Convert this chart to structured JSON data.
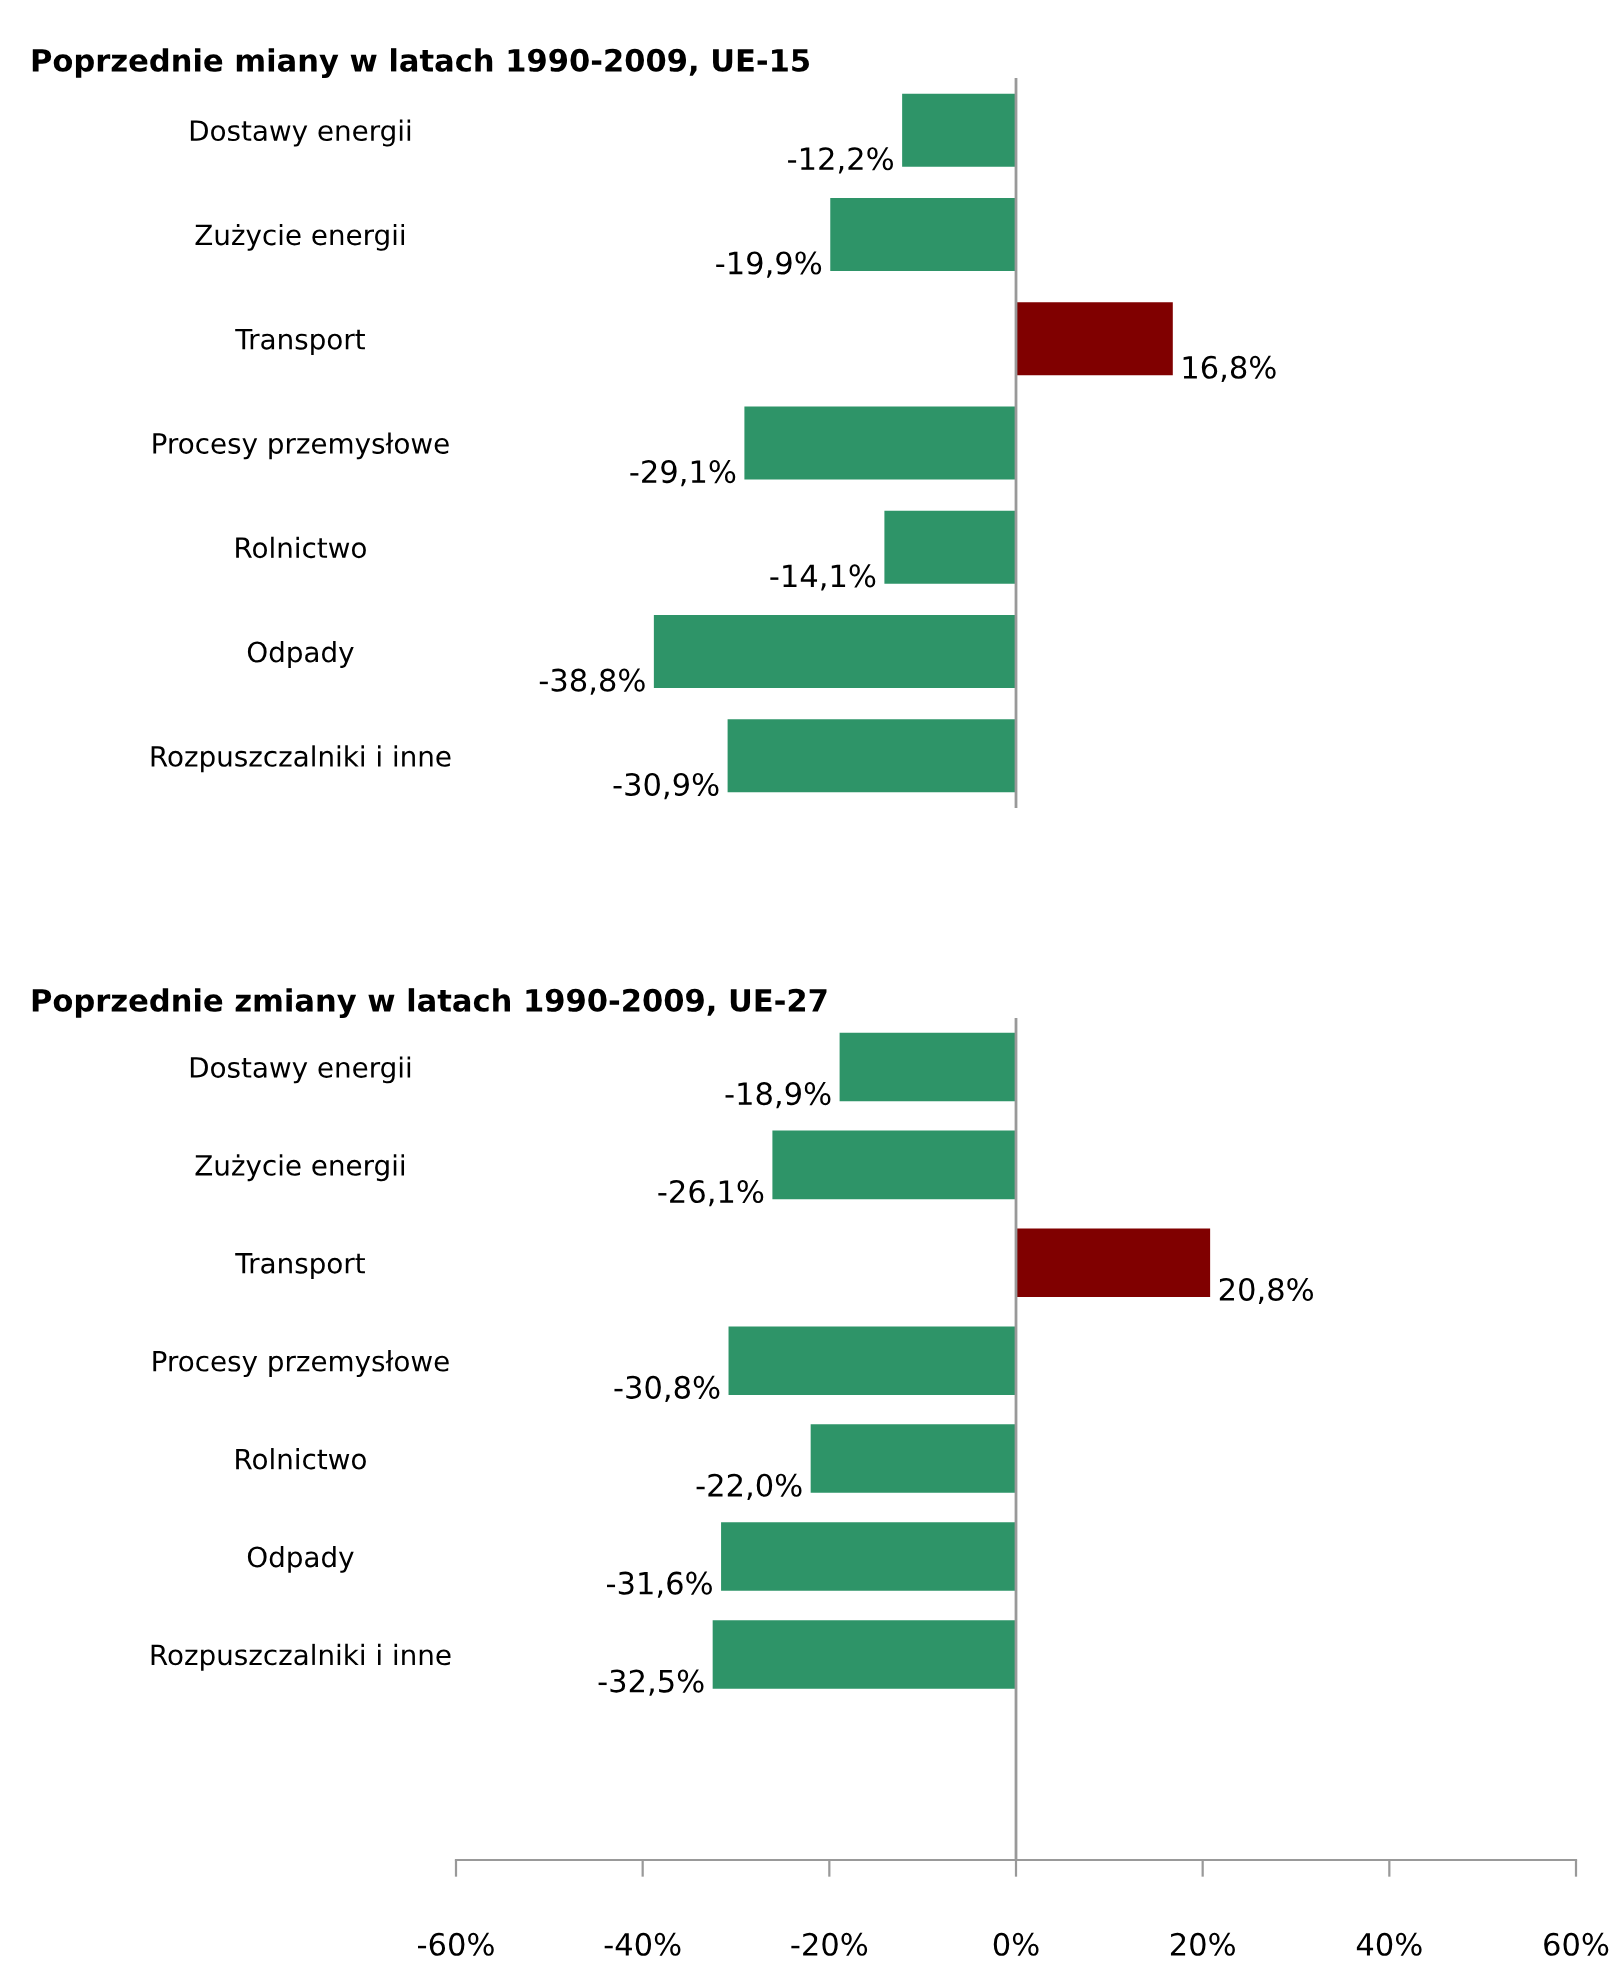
{
  "chart_data": [
    {
      "type": "bar",
      "orientation": "horizontal",
      "title": "Poprzednie miany w latach 1990-2009, UE-15",
      "categories": [
        "Dostawy energii",
        "Zużycie energii",
        "Transport",
        "Procesy przemysłowe",
        "Rolnictwo",
        "Odpady",
        "Rozpuszczalniki i inne"
      ],
      "values": [
        -12.2,
        -19.9,
        16.8,
        -29.1,
        -14.1,
        -38.8,
        -30.9
      ],
      "colors": [
        "#2e9468",
        "#2e9468",
        "#800000",
        "#2e9468",
        "#2e9468",
        "#2e9468",
        "#2e9468"
      ],
      "value_labels": [
        "-12,2%",
        "-19,9%",
        "16,8%",
        "-29,1%",
        "-14,1%",
        "-38,8%",
        "-30,9%"
      ],
      "xlim": [
        -60,
        60
      ],
      "ref_lines": [
        {
          "axis": "x",
          "value": 0,
          "label": null,
          "color": "#999999"
        }
      ],
      "tick_labels": "y",
      "legend": false
    },
    {
      "type": "bar",
      "orientation": "horizontal",
      "title": "Poprzednie zmiany w latach 1990-2009, UE-27",
      "categories": [
        "Dostawy energii",
        "Zużycie energii",
        "Transport",
        "Procesy przemysłowe",
        "Rolnictwo",
        "Odpady",
        "Rozpuszczalniki i inne"
      ],
      "values": [
        -18.9,
        -26.1,
        20.8,
        -30.8,
        -22.0,
        -31.6,
        -32.5
      ],
      "colors": [
        "#2e9468",
        "#2e9468",
        "#800000",
        "#2e9468",
        "#2e9468",
        "#2e9468",
        "#2e9468"
      ],
      "value_labels": [
        "-18,9%",
        "-26,1%",
        "20,8%",
        "-30,8%",
        "-22,0%",
        "-31,6%",
        "-32,5%"
      ],
      "xlim": [
        -60,
        60
      ],
      "xticks": [
        {
          "value": -60,
          "label": "-60%"
        },
        {
          "value": -40,
          "label": "-40%"
        },
        {
          "value": -20,
          "label": "-20%"
        },
        {
          "value": 0,
          "label": "0%"
        },
        {
          "value": 20,
          "label": "20%"
        },
        {
          "value": 40,
          "label": "40%"
        },
        {
          "value": 60,
          "label": "60%"
        }
      ],
      "ref_lines": [
        {
          "axis": "x",
          "value": 0,
          "label": null,
          "color": "#999999"
        }
      ],
      "legend": false
    }
  ]
}
